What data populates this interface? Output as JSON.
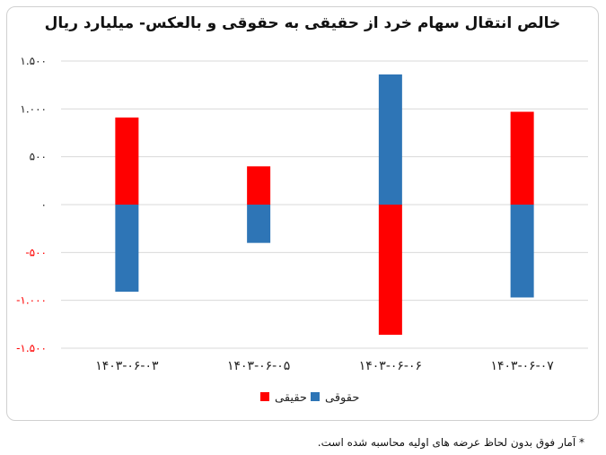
{
  "chart_data": {
    "type": "bar",
    "title": "خالص انتقال سهام خرد از حقیقی به حقوقی و بالعکس- میلیارد ریال",
    "xlabel": "",
    "ylabel": "",
    "categories": [
      "۱۴۰۳-۰۶-۰۳",
      "۱۴۰۳-۰۶-۰۵",
      "۱۴۰۳-۰۶-۰۶",
      "۱۴۰۳-۰۶-۰۷"
    ],
    "series": [
      {
        "name": "حقیقی",
        "color": "#ff0000",
        "values": [
          910,
          400,
          -1360,
          970
        ]
      },
      {
        "name": "حقوقی",
        "color": "#2e75b6",
        "values": [
          -910,
          -400,
          1360,
          -970
        ]
      }
    ],
    "ylim": [
      -1500,
      1500
    ],
    "yticks": [
      1500,
      1000,
      500,
      0,
      -500,
      -1000,
      -1500
    ],
    "ytick_labels": [
      "۱.۵۰۰",
      "۱.۰۰۰",
      "۵۰۰",
      "۰",
      "-۵۰۰",
      "-۱.۰۰۰",
      "-۱.۵۰۰"
    ],
    "grid": true,
    "legend": "bottom"
  },
  "footnote": "* آمار فوق بدون لحاظ عرضه های اولیه محاسبه شده است."
}
